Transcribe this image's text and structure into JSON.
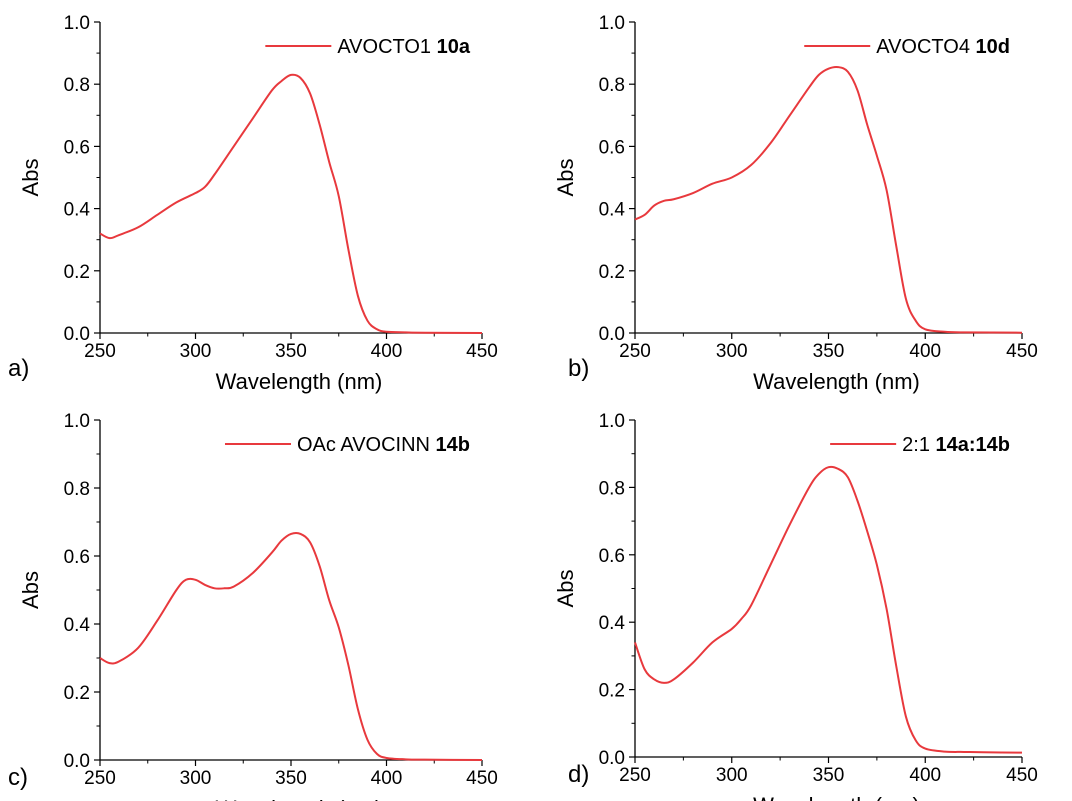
{
  "chart_data": [
    {
      "type": "line",
      "panel_label": "a)",
      "xlabel": "Wavelength (nm)",
      "ylabel": "Abs",
      "xlim": [
        250,
        450
      ],
      "ylim": [
        0,
        1.0
      ],
      "xticks": [
        "250",
        "300",
        "350",
        "400",
        "450"
      ],
      "yticks": [
        "0.0",
        "0.2",
        "0.4",
        "0.6",
        "0.8",
        "1.0"
      ],
      "grid": false,
      "legend_position": "top-right",
      "series": [
        {
          "name_plain": "AVOCTO1",
          "name_bold": "10a",
          "color": "#e8393d",
          "x": [
            250,
            255,
            260,
            270,
            280,
            290,
            300,
            305,
            310,
            320,
            330,
            340,
            345,
            350,
            355,
            360,
            365,
            370,
            375,
            380,
            385,
            390,
            395,
            400,
            410,
            420,
            450
          ],
          "y": [
            0.32,
            0.305,
            0.315,
            0.34,
            0.38,
            0.42,
            0.45,
            0.47,
            0.51,
            0.6,
            0.69,
            0.78,
            0.81,
            0.83,
            0.82,
            0.77,
            0.67,
            0.55,
            0.44,
            0.27,
            0.12,
            0.04,
            0.012,
            0.004,
            0.002,
            0.001,
            0.0
          ]
        }
      ]
    },
    {
      "type": "line",
      "panel_label": "b)",
      "xlabel": "Wavelength (nm)",
      "ylabel": "Abs",
      "xlim": [
        250,
        450
      ],
      "ylim": [
        0,
        1.0
      ],
      "xticks": [
        "250",
        "300",
        "350",
        "400",
        "450"
      ],
      "yticks": [
        "0.0",
        "0.2",
        "0.4",
        "0.6",
        "0.8",
        "1.0"
      ],
      "grid": false,
      "legend_position": "top-right",
      "series": [
        {
          "name_plain": "AVOCTO4",
          "name_bold": "10d",
          "color": "#e8393d",
          "x": [
            250,
            255,
            260,
            265,
            270,
            280,
            290,
            300,
            310,
            320,
            330,
            340,
            345,
            350,
            355,
            360,
            365,
            370,
            375,
            380,
            385,
            390,
            395,
            400,
            410,
            420,
            450
          ],
          "y": [
            0.365,
            0.38,
            0.41,
            0.425,
            0.43,
            0.45,
            0.48,
            0.5,
            0.54,
            0.61,
            0.7,
            0.79,
            0.83,
            0.85,
            0.855,
            0.84,
            0.78,
            0.67,
            0.57,
            0.46,
            0.28,
            0.11,
            0.04,
            0.012,
            0.004,
            0.002,
            0.001
          ]
        }
      ]
    },
    {
      "type": "line",
      "panel_label": "c)",
      "xlabel": "Wavelength (nm)",
      "ylabel": "Abs",
      "xlim": [
        250,
        450
      ],
      "ylim": [
        0,
        1.0
      ],
      "xticks": [
        "250",
        "300",
        "350",
        "400",
        "450"
      ],
      "yticks": [
        "0.0",
        "0.2",
        "0.4",
        "0.6",
        "0.8",
        "1.0"
      ],
      "grid": false,
      "legend_position": "top-right",
      "series": [
        {
          "name_plain": "OAc AVOCINN",
          "name_bold": "14b",
          "color": "#e8393d",
          "x": [
            250,
            255,
            260,
            270,
            280,
            290,
            295,
            300,
            305,
            310,
            315,
            320,
            330,
            340,
            345,
            350,
            355,
            360,
            365,
            370,
            375,
            380,
            385,
            390,
            395,
            400,
            410,
            420,
            450
          ],
          "y": [
            0.3,
            0.285,
            0.29,
            0.33,
            0.41,
            0.5,
            0.53,
            0.53,
            0.515,
            0.505,
            0.505,
            0.51,
            0.55,
            0.61,
            0.645,
            0.665,
            0.665,
            0.64,
            0.57,
            0.47,
            0.39,
            0.28,
            0.15,
            0.06,
            0.018,
            0.006,
            0.002,
            0.001,
            0.0
          ]
        }
      ]
    },
    {
      "type": "line",
      "panel_label": "d)",
      "xlabel": "Wavelength (nm)",
      "ylabel": "Abs",
      "xlim": [
        250,
        450
      ],
      "ylim": [
        0,
        1.0
      ],
      "xticks": [
        "250",
        "300",
        "350",
        "400",
        "450"
      ],
      "yticks": [
        "0.0",
        "0.2",
        "0.4",
        "0.6",
        "0.8",
        "1.0"
      ],
      "grid": false,
      "legend_position": "top-right",
      "series": [
        {
          "name_plain": "2:1",
          "name_bold": "14a:14b",
          "color": "#e8393d",
          "x": [
            250,
            255,
            260,
            265,
            270,
            280,
            290,
            300,
            305,
            310,
            320,
            330,
            340,
            345,
            350,
            355,
            360,
            365,
            370,
            375,
            380,
            385,
            390,
            395,
            400,
            410,
            420,
            430,
            450
          ],
          "y": [
            0.34,
            0.26,
            0.23,
            0.22,
            0.23,
            0.28,
            0.34,
            0.38,
            0.41,
            0.45,
            0.57,
            0.69,
            0.8,
            0.84,
            0.86,
            0.855,
            0.83,
            0.76,
            0.67,
            0.57,
            0.44,
            0.27,
            0.12,
            0.05,
            0.025,
            0.016,
            0.015,
            0.014,
            0.013
          ]
        }
      ]
    }
  ]
}
